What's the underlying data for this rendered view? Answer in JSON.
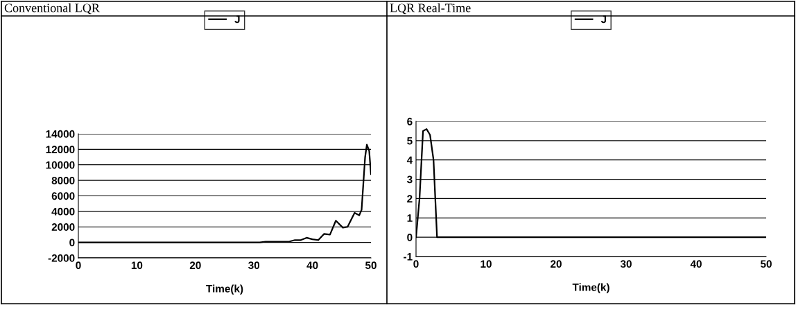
{
  "chart_data": [
    {
      "type": "line",
      "title": "Conventional LQR",
      "xlabel": "Time(k)",
      "legend": "top",
      "grid": "y",
      "marker": "none",
      "line_style": "solid",
      "xlim": [
        0,
        50
      ],
      "xticks": [
        0,
        10,
        20,
        30,
        40,
        50
      ],
      "ylim": [
        -2000,
        14000
      ],
      "yticks": [
        -2000,
        0,
        2000,
        4000,
        6000,
        8000,
        10000,
        12000,
        14000
      ],
      "series": [
        {
          "name": "J",
          "color": "#000000",
          "x": [
            0,
            10,
            20,
            30,
            31,
            32,
            35,
            36,
            37,
            38,
            39,
            40,
            41,
            42,
            43,
            44,
            45.2,
            46,
            47.2,
            48,
            48.4,
            49,
            49.3,
            49.7,
            50
          ],
          "values": [
            0,
            0,
            0,
            0,
            0,
            100,
            100,
            100,
            300,
            300,
            600,
            400,
            300,
            1100,
            1000,
            2800,
            1900,
            2000,
            3800,
            3500,
            4200,
            11000,
            12600,
            11800,
            8800
          ]
        }
      ]
    },
    {
      "type": "line",
      "title": "LQR Real-Time",
      "xlabel": "Time(k)",
      "legend": "top",
      "grid": "y",
      "marker": "none",
      "line_style": "solid",
      "xlim": [
        0,
        50
      ],
      "xticks": [
        0,
        10,
        20,
        30,
        40,
        50
      ],
      "ylim": [
        -1,
        6
      ],
      "yticks": [
        -1,
        0,
        1,
        2,
        3,
        4,
        5,
        6
      ],
      "series": [
        {
          "name": "J",
          "color": "#000000",
          "x": [
            0,
            0.5,
            1,
            1.5,
            2,
            2.5,
            3,
            50
          ],
          "values": [
            0,
            2,
            5.5,
            5.6,
            5.3,
            4,
            0,
            0
          ]
        }
      ]
    }
  ]
}
